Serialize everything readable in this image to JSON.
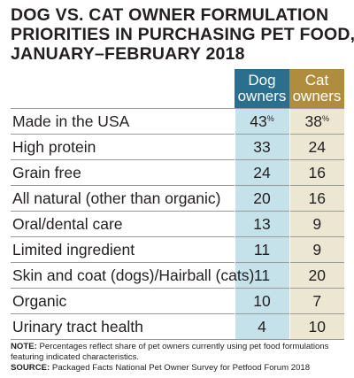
{
  "chart_data": {
    "type": "table",
    "title_lines": [
      "DOG VS. CAT OWNER FORMULATION",
      "PRIORITIES IN PURCHASING PET FOOD,",
      "JANUARY–FEBRUARY 2018"
    ],
    "columns": [
      {
        "name_lines": [
          "Dog",
          "owners"
        ],
        "color": "#2a6f8e",
        "cell_color": "#c5e1ea"
      },
      {
        "name_lines": [
          "Cat",
          "owners"
        ],
        "color": "#b08d3e",
        "cell_color": "#ece7d3"
      }
    ],
    "unit_suffix": "%",
    "rows": [
      {
        "label": "Made in the USA",
        "dog": 43,
        "cat": 38
      },
      {
        "label": "High protein",
        "dog": 33,
        "cat": 24
      },
      {
        "label": "Grain free",
        "dog": 24,
        "cat": 16
      },
      {
        "label": "All natural (other than organic)",
        "dog": 20,
        "cat": 16
      },
      {
        "label": "Oral/dental care",
        "dog": 13,
        "cat": 9
      },
      {
        "label": "Limited ingredient",
        "dog": 11,
        "cat": 9
      },
      {
        "label": "Skin and coat (dogs)/Hairball (cats)",
        "dog": 11,
        "cat": 20
      },
      {
        "label": "Organic",
        "dog": 10,
        "cat": 7
      },
      {
        "label": "Urinary tract health",
        "dog": 4,
        "cat": 10
      }
    ]
  },
  "notes": {
    "note_label": "NOTE:",
    "note_text": " Percentages reflect share of pet owners currently using pet food formulations featuring indicated characteristics.",
    "source_label": "SOURCE:",
    "source_text": " Packaged Facts National Pet Owner Survey for Petfood Forum 2018"
  }
}
